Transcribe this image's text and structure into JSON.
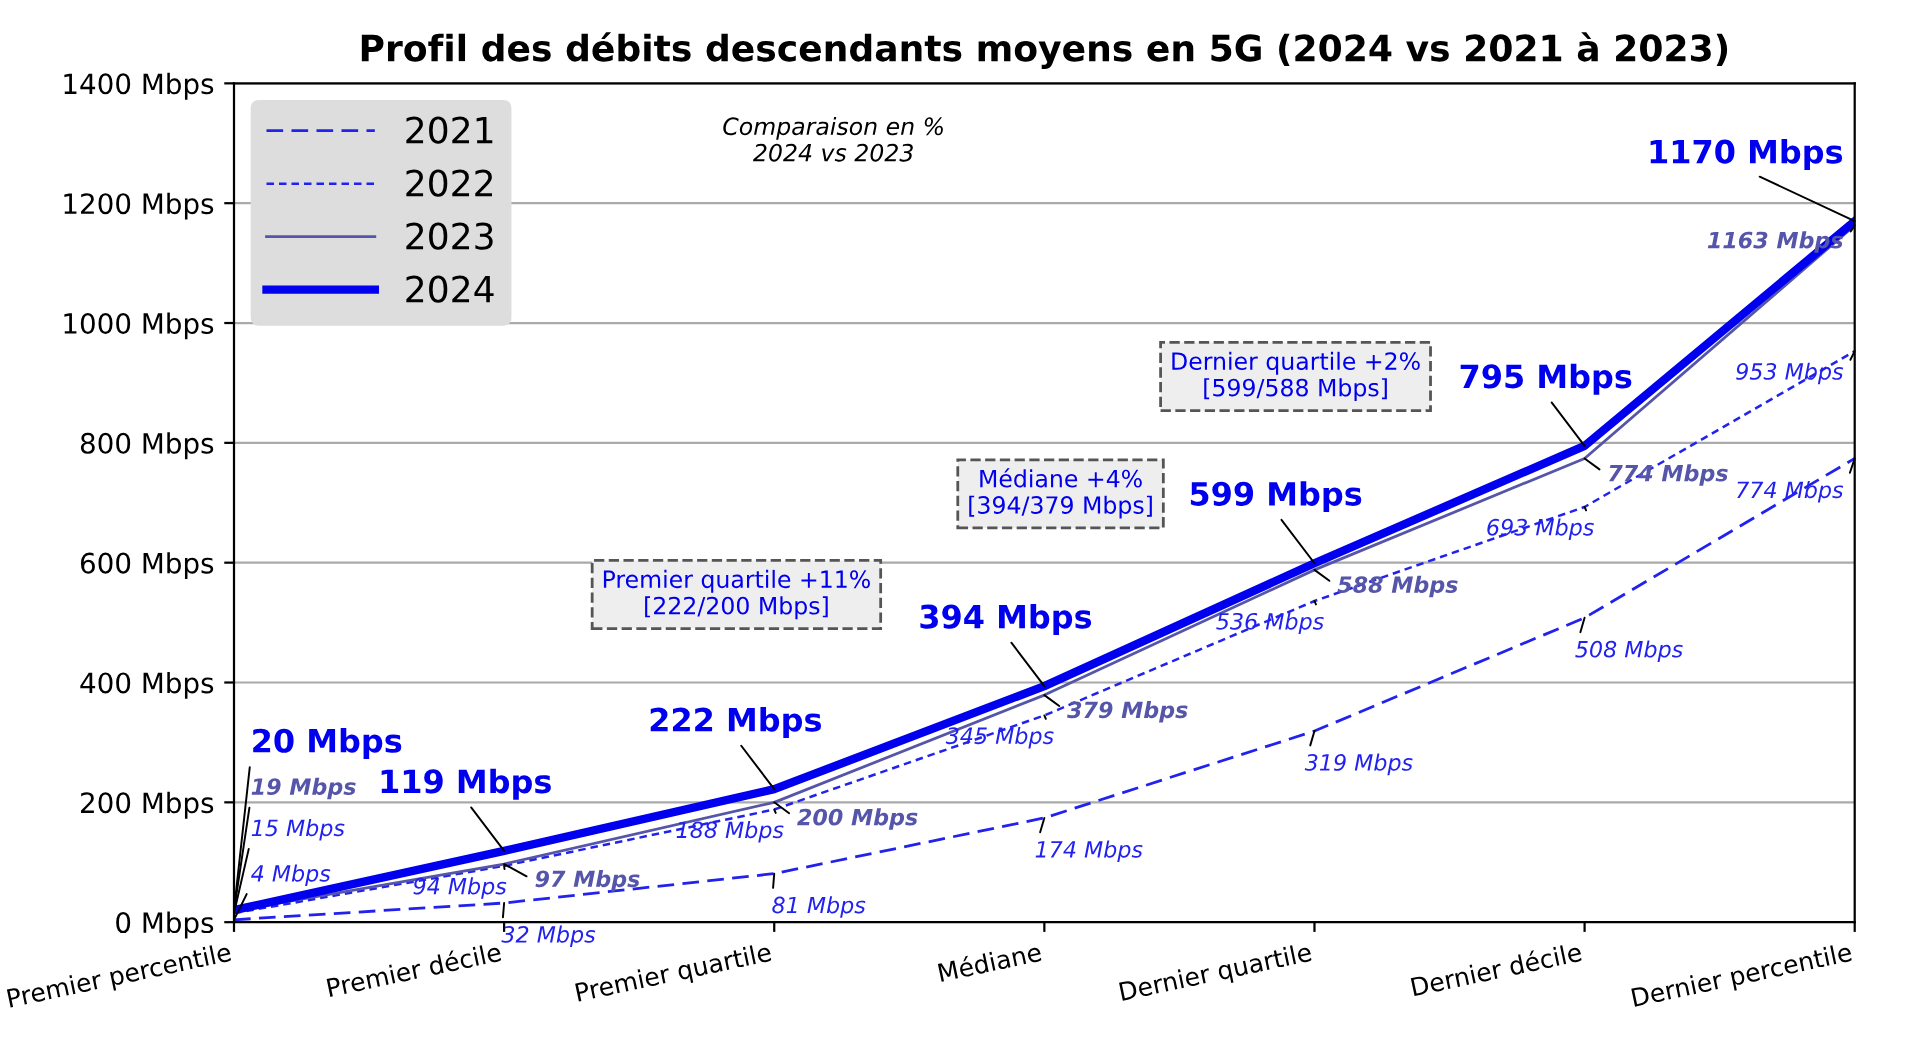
{
  "chart_data": {
    "type": "line",
    "title": "Profil des débits descendants moyens en 5G (2024 vs 2021 à 2023)",
    "categories": [
      "Premier percentile",
      "Premier décile",
      "Premier quartile",
      "Médiane",
      "Dernier quartile",
      "Dernier décile",
      "Dernier percentile"
    ],
    "series": [
      {
        "name": "2021",
        "color": "#2222ee",
        "line_style": "dashed",
        "values": [
          4,
          32,
          81,
          174,
          319,
          508,
          774
        ],
        "value_labels": [
          "4 Mbps",
          "32 Mbps",
          "81 Mbps",
          "174 Mbps",
          "319 Mbps",
          "508 Mbps",
          "774 Mbps"
        ]
      },
      {
        "name": "2022",
        "color": "#2222ee",
        "line_style": "dotted",
        "values": [
          15,
          94,
          188,
          345,
          536,
          693,
          953
        ],
        "value_labels": [
          "15 Mbps",
          "94 Mbps",
          "188 Mbps",
          "345 Mbps",
          "536 Mbps",
          "693 Mbps",
          "953 Mbps"
        ]
      },
      {
        "name": "2023",
        "color": "#5555aa",
        "line_style": "solid",
        "values": [
          19,
          97,
          200,
          379,
          588,
          774,
          1163
        ],
        "value_labels": [
          "19 Mbps",
          "97 Mbps",
          "200 Mbps",
          "379 Mbps",
          "588 Mbps",
          "774 Mbps",
          "1163 Mbps"
        ]
      },
      {
        "name": "2024",
        "color": "#0000ee",
        "line_style": "solid",
        "values": [
          20,
          119,
          222,
          394,
          599,
          795,
          1170
        ],
        "value_labels": [
          "20 Mbps",
          "119 Mbps",
          "222 Mbps",
          "394 Mbps",
          "599 Mbps",
          "795 Mbps",
          "1170 Mbps"
        ]
      }
    ],
    "ylim": [
      0,
      1400
    ],
    "yticks": [
      {
        "value": 0,
        "label": "0 Mbps"
      },
      {
        "value": 200,
        "label": "200 Mbps"
      },
      {
        "value": 400,
        "label": "400 Mbps"
      },
      {
        "value": 600,
        "label": "600 Mbps"
      },
      {
        "value": 800,
        "label": "800 Mbps"
      },
      {
        "value": 1000,
        "label": "1000 Mbps"
      },
      {
        "value": 1200,
        "label": "1200 Mbps"
      },
      {
        "value": 1400,
        "label": "1400 Mbps"
      }
    ],
    "grid": "y",
    "legend": "top left",
    "annotations": [
      "Comparaison en %\n2024 vs 2023",
      "Premier quartile +11%\n[222/200 Mbps]",
      "Médiane +4%\n[394/379 Mbps]",
      "Dernier quartile +2%\n[599/588 Mbps]"
    ]
  }
}
